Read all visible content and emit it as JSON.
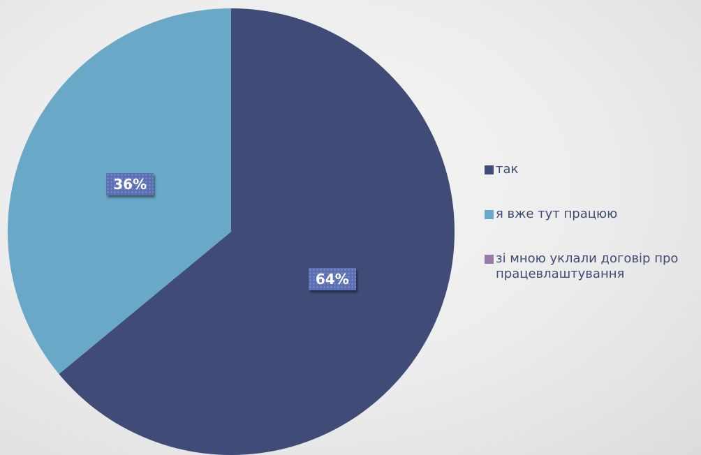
{
  "chart_data": {
    "type": "pie",
    "categories": [
      "так",
      "я вже тут працюю",
      "зі мною уклали договір про працевлаштування"
    ],
    "values": [
      64,
      36,
      0
    ],
    "data_labels": [
      "64%",
      "36%",
      ""
    ],
    "colors": [
      "#404c77",
      "#6aa8c7",
      "#9c7aa8"
    ],
    "start_angle_deg": 0,
    "direction": "clockwise",
    "legend_position": "right",
    "title": ""
  },
  "legend": {
    "items": [
      {
        "label": "так",
        "color": "#404c77"
      },
      {
        "label": "я вже тут працюю",
        "color": "#6aa8c7"
      },
      {
        "label": "зі мною уклали договір про працевлаштування",
        "color": "#9c7aa8"
      }
    ]
  }
}
